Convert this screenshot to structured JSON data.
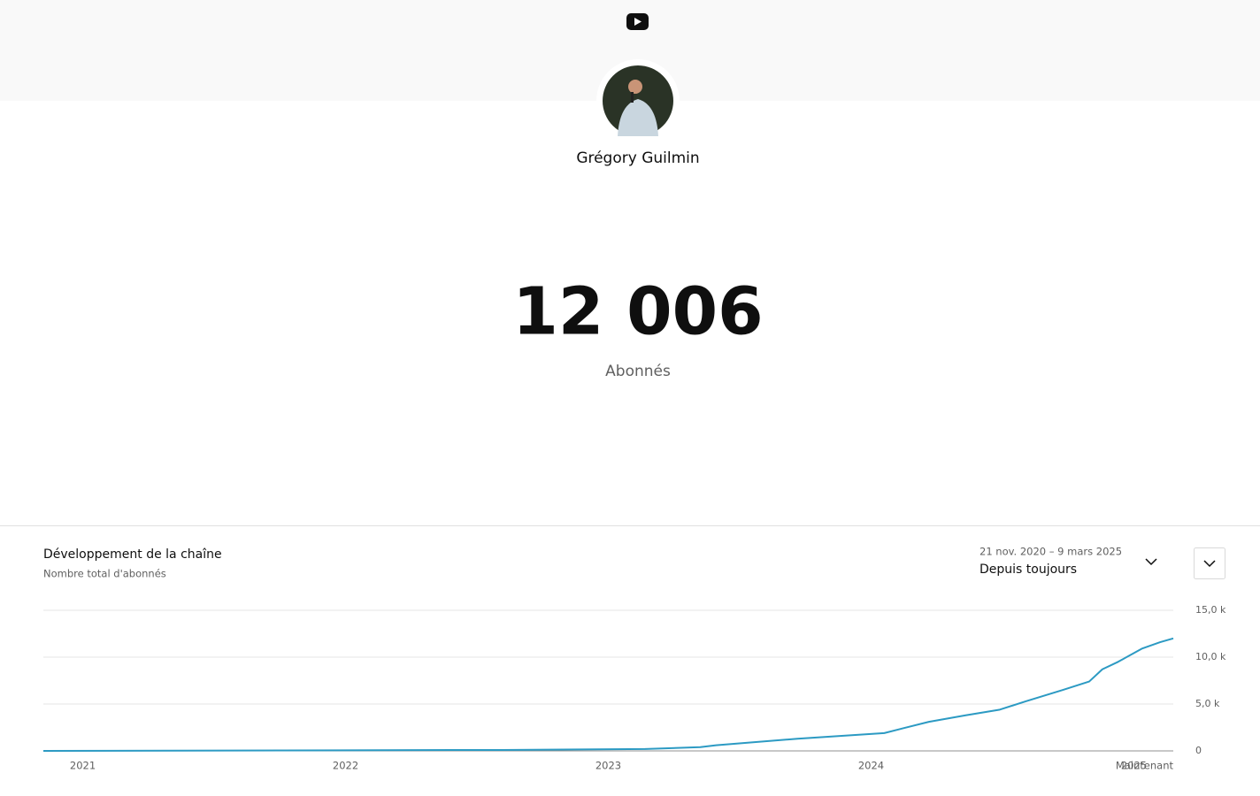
{
  "profile": {
    "name": "Grégory Guilmin"
  },
  "counter": {
    "value": "12 006",
    "label": "Abonnés"
  },
  "period": {
    "range": "21 nov. 2020 – 9 mars 2025",
    "selection": "Depuis toujours"
  },
  "chart_data": {
    "type": "line",
    "title": "Développement de la chaîne",
    "subtitle": "Nombre total d'abonnés",
    "x": [
      2020.85,
      2022.59,
      2023.14,
      2023.35,
      2023.41,
      2023.72,
      2024.05,
      2024.12,
      2024.22,
      2024.36,
      2024.49,
      2024.59,
      2024.73,
      2024.83,
      2024.88,
      2024.94,
      2025.03,
      2025.1,
      2025.15
    ],
    "values": [
      0,
      100,
      200,
      400,
      600,
      1300,
      1900,
      2400,
      3100,
      3800,
      4400,
      5300,
      6500,
      7400,
      8700,
      9500,
      10900,
      11600,
      12000
    ],
    "color": "#2c9ac3",
    "xlim": [
      2020.85,
      2025.15
    ],
    "xticks": [
      2021,
      2022,
      2023,
      2024,
      2025,
      {
        "value": 2025.15,
        "label": "Maintenant"
      }
    ],
    "ylim": [
      0,
      15000
    ],
    "yticks": [
      0,
      {
        "value": 5000,
        "label": "5,0 k"
      },
      {
        "value": 10000,
        "label": "10,0 k"
      },
      {
        "value": 15000,
        "label": "15,0 k"
      }
    ],
    "grid": true
  }
}
